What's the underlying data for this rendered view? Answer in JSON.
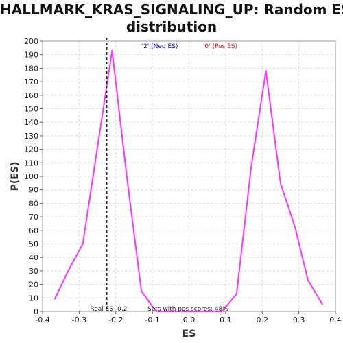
{
  "chart_data": {
    "type": "line",
    "title_lines": [
      "HALLMARK_KRAS_SIGNALING_UP: Random ES",
      "distribution"
    ],
    "xlabel": "ES",
    "ylabel": "P(ES)",
    "xlim": [
      -0.4,
      0.4
    ],
    "ylim": [
      0,
      200
    ],
    "x_ticks": [
      "-0.4",
      "-0.3",
      "-0.2",
      "-0.1",
      "0.0",
      "0.1",
      "0.2",
      "0.3",
      "0.4"
    ],
    "y_ticks": [
      "0",
      "10",
      "20",
      "30",
      "40",
      "50",
      "60",
      "70",
      "80",
      "90",
      "100",
      "110",
      "120",
      "130",
      "140",
      "150",
      "160",
      "170",
      "180",
      "190",
      "200"
    ],
    "grid": true,
    "legend": [
      {
        "label": "'2' (Neg ES)",
        "color": "#0000ff"
      },
      {
        "label": "'0' (Pos ES)",
        "color": "#ff0000"
      }
    ],
    "series": [
      {
        "color": "#ff33ff",
        "points": [
          [
            -0.367,
            9
          ],
          [
            -0.33,
            30
          ],
          [
            -0.29,
            50
          ],
          [
            -0.21,
            193
          ],
          [
            -0.17,
            100
          ],
          [
            -0.13,
            15
          ],
          [
            -0.09,
            0
          ],
          [
            -0.05,
            0
          ],
          [
            0.0,
            0
          ],
          [
            0.05,
            0
          ],
          [
            0.09,
            0
          ],
          [
            0.13,
            13
          ],
          [
            0.17,
            107
          ],
          [
            0.21,
            178
          ],
          [
            0.25,
            95
          ],
          [
            0.29,
            62
          ],
          [
            0.325,
            23
          ],
          [
            0.365,
            5
          ]
        ]
      }
    ],
    "real_es": {
      "x": -0.225,
      "label": "Real ES -0.2"
    },
    "annotation": "Sets with pos scores: 48%"
  }
}
